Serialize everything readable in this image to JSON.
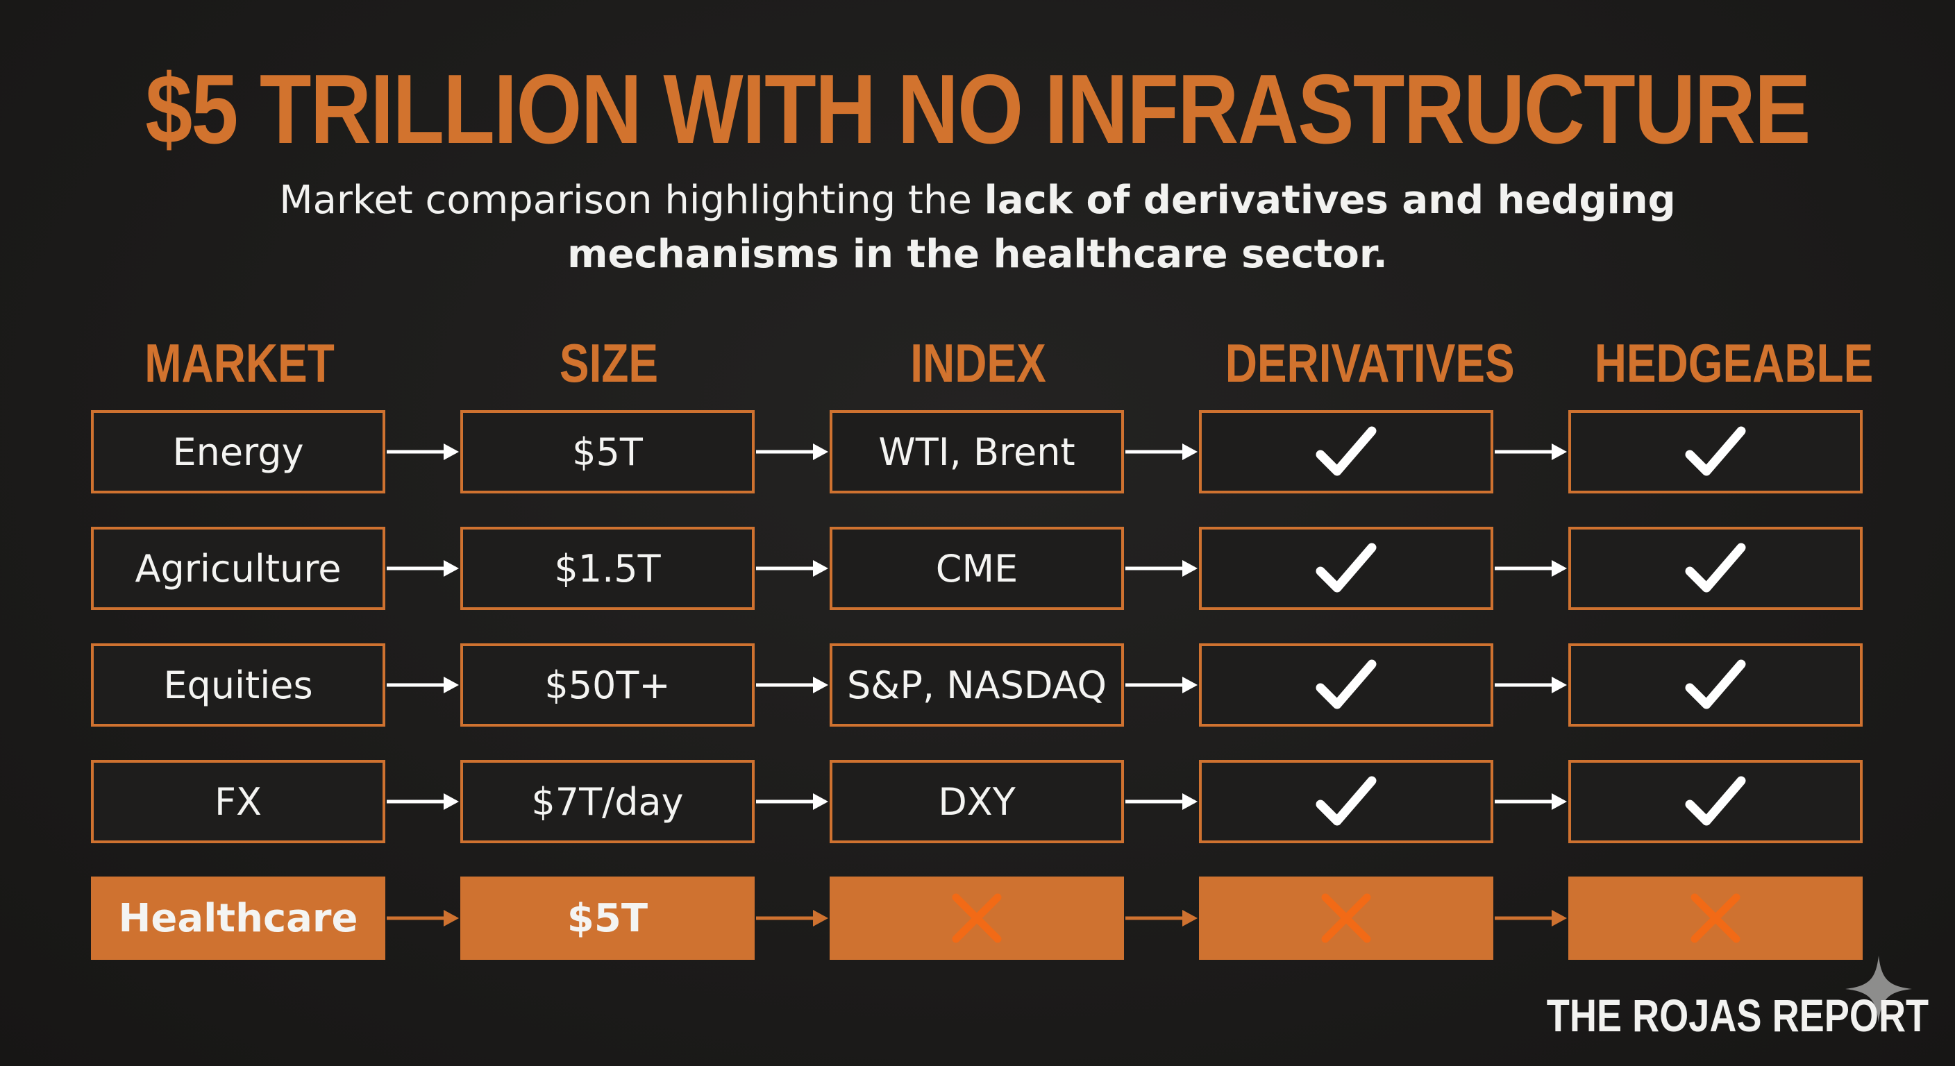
{
  "title": "$5 TRILLION WITH NO INFRASTRUCTURE",
  "subtitle": {
    "plain": "Market comparison highlighting the ",
    "bold": "lack of derivatives and hedging mechanisms in the healthcare sector."
  },
  "columns": [
    "MARKET",
    "SIZE",
    "INDEX",
    "DERIVATIVES",
    "HEDGEABLE"
  ],
  "rows": [
    {
      "market": "Energy",
      "size": "$5T",
      "index": "WTI, Brent",
      "derivatives": "check",
      "hedgeable": "check",
      "highlight": false
    },
    {
      "market": "Agriculture",
      "size": "$1.5T",
      "index": "CME",
      "derivatives": "check",
      "hedgeable": "check",
      "highlight": false
    },
    {
      "market": "Equities",
      "size": "$50T+",
      "index": "S&P, NASDAQ",
      "derivatives": "check",
      "hedgeable": "check",
      "highlight": false
    },
    {
      "market": "FX",
      "size": "$7T/day",
      "index": "DXY",
      "derivatives": "check",
      "hedgeable": "check",
      "highlight": false
    },
    {
      "market": "Healthcare",
      "size": "$5T",
      "index": "cross",
      "derivatives": "cross",
      "hedgeable": "cross",
      "highlight": true
    }
  ],
  "brand": "THE ROJAS REPORT",
  "colors": {
    "accent": "#cf7230",
    "cross": "#f26a16",
    "text": "#f4f4f2",
    "background": "#1d1c1b"
  },
  "icons": {
    "check": "checkmark-icon",
    "cross": "x-mark-icon",
    "arrow": "right-arrow-icon",
    "sparkle": "sparkle-icon"
  }
}
